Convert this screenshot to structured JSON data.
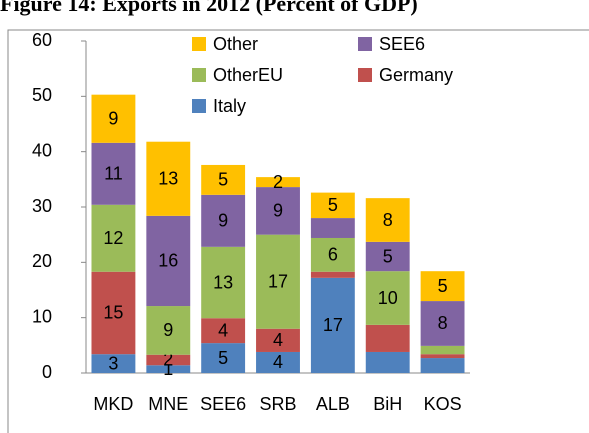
{
  "chart_data": {
    "type": "stacked_bar",
    "title": "Figure 14: Exports in 2012 (Percent of GDP)",
    "categories": [
      "MKD",
      "MNE",
      "SEE6",
      "SRB",
      "ALB",
      "BiH",
      "KOS"
    ],
    "series": [
      {
        "name": "Italy",
        "color": "#4f81bd",
        "values": [
          3.4,
          1.4,
          5.4,
          3.8,
          17.2,
          3.8,
          2.7
        ],
        "value_labels": [
          "3",
          "1",
          "5",
          "4",
          "17",
          null,
          null
        ]
      },
      {
        "name": "Germany",
        "color": "#c0504d",
        "values": [
          14.9,
          1.9,
          4.5,
          4.2,
          1.1,
          4.9,
          0.7
        ],
        "value_labels": [
          "15",
          "2",
          "4",
          "4",
          null,
          null,
          null
        ]
      },
      {
        "name": "OtherEU",
        "color": "#9bbb59",
        "values": [
          12.1,
          8.8,
          12.9,
          17.0,
          6.1,
          9.7,
          1.5
        ],
        "value_labels": [
          "12",
          "9",
          "13",
          "17",
          "6",
          "10",
          null
        ]
      },
      {
        "name": "SEE6",
        "color": "#8064a2",
        "values": [
          11.2,
          16.3,
          9.4,
          8.6,
          3.6,
          5.3,
          8.1
        ],
        "value_labels": [
          "11",
          "16",
          "9",
          "9",
          null,
          "5",
          "8"
        ]
      },
      {
        "name": "Other",
        "color": "#ffc000",
        "values": [
          8.7,
          13.4,
          5.4,
          1.8,
          4.6,
          7.9,
          5.4
        ],
        "value_labels": [
          "9",
          "13",
          "5",
          "2",
          "5",
          "8",
          "5"
        ]
      }
    ],
    "ylim": [
      0,
      60
    ],
    "yticks": [
      0,
      10,
      20,
      30,
      40,
      50,
      60
    ],
    "grid": false,
    "legend": "top"
  }
}
